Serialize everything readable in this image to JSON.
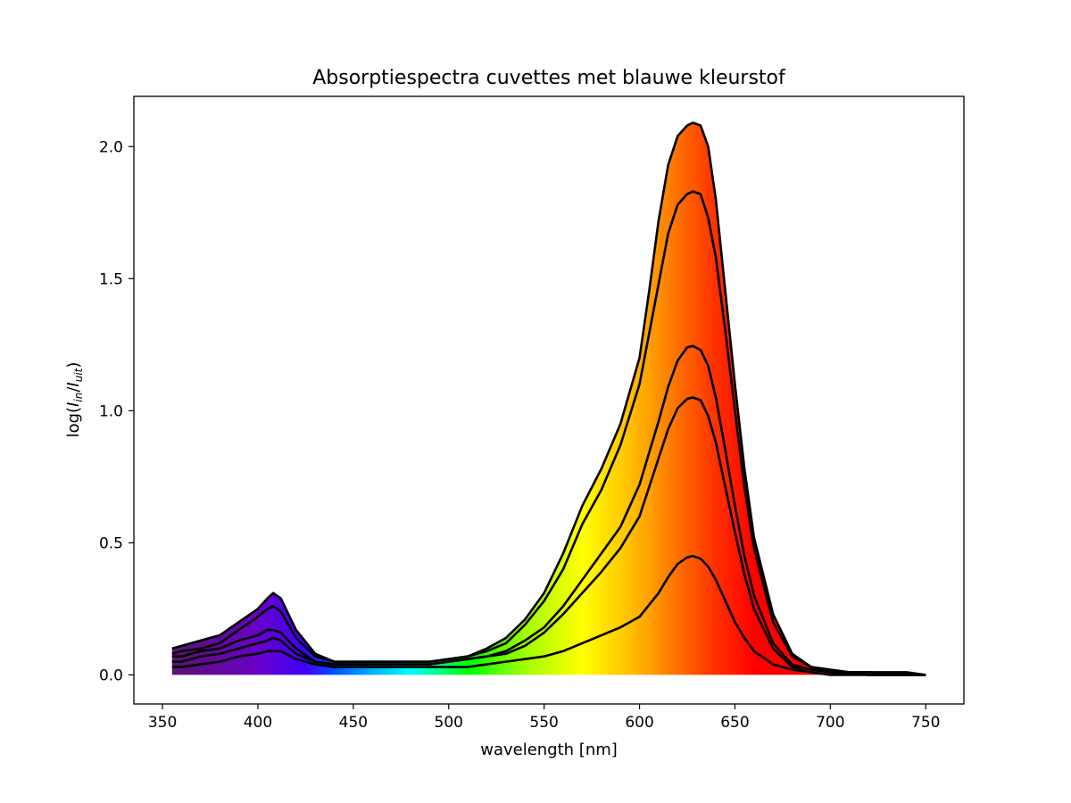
{
  "chart_data": {
    "type": "line",
    "title": "Absorptiespectra cuvettes met blauwe kleurstof",
    "xlabel": "wavelength [nm]",
    "ylabel": {
      "prefix": "log(",
      "i1": "I",
      "s1": "in",
      "slash": "/",
      "i2": "I",
      "s2": "uit",
      "suffix": ")"
    },
    "xlim": [
      335,
      770
    ],
    "ylim": [
      -0.11,
      2.19
    ],
    "xticks": [
      350,
      400,
      450,
      500,
      550,
      600,
      650,
      700,
      750
    ],
    "yticks": [
      0.0,
      0.5,
      1.0,
      1.5,
      2.0
    ],
    "ytick_labels": [
      "0.0",
      "0.5",
      "1.0",
      "1.5",
      "2.0"
    ],
    "grid": false,
    "fill": "visible-spectrum gradient under the highest curve",
    "series": [
      {
        "x": [
          355,
          360,
          370,
          380,
          390,
          400,
          405,
          408,
          412,
          420,
          430,
          440,
          450,
          470,
          490,
          500,
          510,
          520,
          530,
          540,
          550,
          560,
          570,
          580,
          590,
          600,
          605,
          610,
          615,
          620,
          625,
          628,
          632,
          636,
          640,
          645,
          650,
          655,
          660,
          670,
          680,
          690,
          700,
          710,
          720,
          740,
          750
        ],
        "y": [
          0.1,
          0.11,
          0.13,
          0.15,
          0.2,
          0.25,
          0.29,
          0.31,
          0.29,
          0.17,
          0.08,
          0.05,
          0.05,
          0.05,
          0.05,
          0.06,
          0.07,
          0.1,
          0.14,
          0.21,
          0.31,
          0.46,
          0.64,
          0.78,
          0.95,
          1.2,
          1.45,
          1.72,
          1.93,
          2.04,
          2.08,
          2.09,
          2.08,
          2.0,
          1.8,
          1.45,
          1.1,
          0.78,
          0.52,
          0.23,
          0.08,
          0.03,
          0.02,
          0.01,
          0.01,
          0.01,
          0.0
        ]
      },
      {
        "x": [
          355,
          360,
          370,
          380,
          390,
          400,
          405,
          408,
          412,
          420,
          430,
          440,
          450,
          470,
          490,
          500,
          510,
          520,
          530,
          540,
          550,
          560,
          570,
          580,
          590,
          600,
          610,
          615,
          620,
          625,
          628,
          632,
          636,
          640,
          645,
          650,
          655,
          660,
          670,
          680,
          690,
          700,
          720,
          750
        ],
        "y": [
          0.08,
          0.09,
          0.1,
          0.12,
          0.17,
          0.22,
          0.25,
          0.26,
          0.24,
          0.14,
          0.07,
          0.05,
          0.05,
          0.05,
          0.05,
          0.06,
          0.07,
          0.09,
          0.12,
          0.19,
          0.28,
          0.4,
          0.57,
          0.7,
          0.87,
          1.1,
          1.48,
          1.67,
          1.78,
          1.82,
          1.83,
          1.82,
          1.73,
          1.58,
          1.3,
          1.0,
          0.71,
          0.48,
          0.2,
          0.07,
          0.03,
          0.01,
          0.01,
          0.0
        ]
      },
      {
        "x": [
          355,
          360,
          370,
          380,
          390,
          400,
          405,
          408,
          412,
          420,
          430,
          440,
          450,
          470,
          490,
          500,
          510,
          520,
          530,
          540,
          550,
          560,
          570,
          580,
          590,
          600,
          610,
          615,
          620,
          625,
          628,
          632,
          636,
          640,
          645,
          650,
          655,
          660,
          670,
          680,
          690,
          700,
          720,
          750
        ],
        "y": [
          0.07,
          0.07,
          0.09,
          0.1,
          0.13,
          0.15,
          0.17,
          0.17,
          0.16,
          0.1,
          0.05,
          0.04,
          0.04,
          0.04,
          0.04,
          0.05,
          0.06,
          0.07,
          0.09,
          0.13,
          0.18,
          0.26,
          0.36,
          0.46,
          0.56,
          0.72,
          0.96,
          1.09,
          1.19,
          1.24,
          1.245,
          1.23,
          1.17,
          1.05,
          0.85,
          0.64,
          0.45,
          0.3,
          0.12,
          0.04,
          0.02,
          0.01,
          0.0,
          0.0
        ]
      },
      {
        "x": [
          355,
          360,
          370,
          380,
          390,
          400,
          405,
          408,
          412,
          420,
          430,
          440,
          450,
          470,
          490,
          500,
          510,
          520,
          530,
          540,
          550,
          560,
          570,
          580,
          590,
          600,
          610,
          615,
          620,
          625,
          628,
          632,
          636,
          640,
          645,
          650,
          655,
          660,
          670,
          680,
          690,
          700,
          720,
          750
        ],
        "y": [
          0.05,
          0.05,
          0.07,
          0.08,
          0.1,
          0.12,
          0.13,
          0.14,
          0.13,
          0.08,
          0.05,
          0.04,
          0.04,
          0.04,
          0.04,
          0.05,
          0.06,
          0.07,
          0.08,
          0.11,
          0.16,
          0.23,
          0.31,
          0.39,
          0.48,
          0.6,
          0.82,
          0.93,
          1.01,
          1.045,
          1.05,
          1.04,
          0.98,
          0.88,
          0.71,
          0.54,
          0.38,
          0.25,
          0.1,
          0.03,
          0.02,
          0.01,
          0.0,
          0.0
        ]
      },
      {
        "x": [
          355,
          360,
          370,
          380,
          390,
          400,
          405,
          408,
          412,
          420,
          430,
          440,
          450,
          470,
          490,
          500,
          510,
          520,
          530,
          540,
          550,
          560,
          570,
          580,
          590,
          600,
          610,
          615,
          620,
          625,
          628,
          632,
          636,
          640,
          645,
          650,
          655,
          660,
          670,
          680,
          690,
          700,
          720,
          750
        ],
        "y": [
          0.03,
          0.03,
          0.04,
          0.05,
          0.07,
          0.08,
          0.09,
          0.09,
          0.09,
          0.06,
          0.04,
          0.03,
          0.03,
          0.03,
          0.03,
          0.03,
          0.03,
          0.04,
          0.05,
          0.06,
          0.07,
          0.09,
          0.12,
          0.15,
          0.18,
          0.22,
          0.31,
          0.37,
          0.42,
          0.445,
          0.45,
          0.44,
          0.41,
          0.36,
          0.28,
          0.2,
          0.14,
          0.09,
          0.04,
          0.02,
          0.01,
          0.0,
          0.0,
          0.0
        ]
      }
    ],
    "spectrum_colors": [
      {
        "nm": 355,
        "color": "#5a1470"
      },
      {
        "nm": 400,
        "color": "#6a00c8"
      },
      {
        "nm": 425,
        "color": "#4000ff"
      },
      {
        "nm": 440,
        "color": "#0050ff"
      },
      {
        "nm": 460,
        "color": "#00b0ff"
      },
      {
        "nm": 480,
        "color": "#00ffff"
      },
      {
        "nm": 495,
        "color": "#00ff80"
      },
      {
        "nm": 510,
        "color": "#00ff00"
      },
      {
        "nm": 540,
        "color": "#a0ff00"
      },
      {
        "nm": 570,
        "color": "#ffff00"
      },
      {
        "nm": 595,
        "color": "#ffc000"
      },
      {
        "nm": 615,
        "color": "#ff8000"
      },
      {
        "nm": 640,
        "color": "#ff3000"
      },
      {
        "nm": 660,
        "color": "#ff0000"
      },
      {
        "nm": 750,
        "color": "#ff0000"
      }
    ],
    "line_color": "#000000"
  }
}
